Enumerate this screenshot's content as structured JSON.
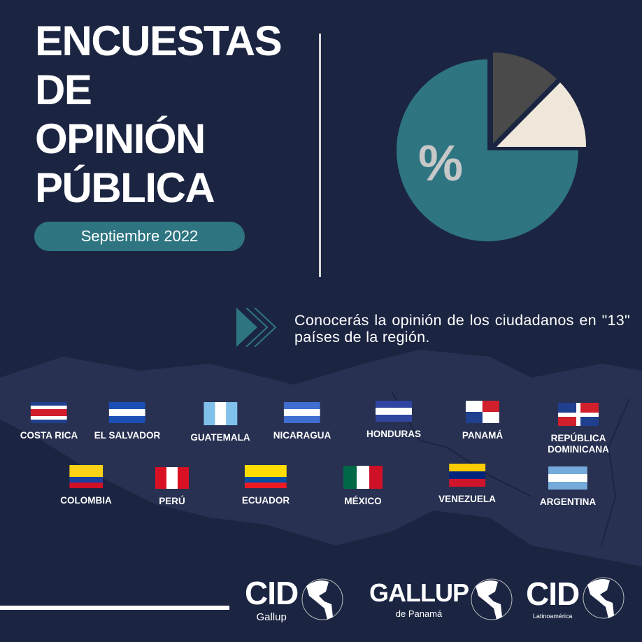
{
  "title_lines": [
    "ENCUESTAS",
    "DE",
    "OPINIÓN",
    "PÚBLICA"
  ],
  "date_label": "Septiembre 2022",
  "pie_symbol": "%",
  "pie_colors": {
    "main": "#2e7581",
    "dark": "#4a4a4a",
    "light": "#efe8da"
  },
  "intro_text": "Conocerás la opinión de los ciudadanos en \"13\" países de la región.",
  "countries": [
    {
      "name": "COSTA RICA",
      "stripes": [
        "#1f3f8f",
        "#ffffff",
        "#d21f2c",
        "#d21f2c",
        "#ffffff",
        "#1f3f8f"
      ]
    },
    {
      "name": "EL SALVADOR",
      "stripes": [
        "#1c4fb5",
        "#ffffff",
        "#1c4fb5"
      ]
    },
    {
      "name": "GUATEMALA",
      "stripes": [
        "#7fc1ea",
        "#ffffff",
        "#7fc1ea"
      ],
      "vertical": true
    },
    {
      "name": "NICARAGUA",
      "stripes": [
        "#3f6ed0",
        "#ffffff",
        "#3f6ed0"
      ]
    },
    {
      "name": "HONDURAS",
      "stripes": [
        "#2f45a0",
        "#ffffff",
        "#2f45a0"
      ]
    },
    {
      "name": "PANAMÁ",
      "stripes": [
        "#ffffff",
        "#d21f2c",
        "#1f3f8f",
        "#ffffff"
      ],
      "quarters": true
    },
    {
      "name": "REPÚBLICA DOMINICANA",
      "stripes": [
        "#1f3f8f",
        "#d21f2c",
        "#d21f2c",
        "#1f3f8f"
      ],
      "quarters": true
    },
    {
      "name": "COLOMBIA",
      "stripes": [
        "#fcd116",
        "#fcd116",
        "#1c3f9e",
        "#ce1126"
      ]
    },
    {
      "name": "PERÚ",
      "stripes": [
        "#d91023",
        "#ffffff",
        "#d91023"
      ],
      "vertical": true
    },
    {
      "name": "ECUADOR",
      "stripes": [
        "#ffdd00",
        "#ffdd00",
        "#034ea2",
        "#ed1c24"
      ]
    },
    {
      "name": "MÉXICO",
      "stripes": [
        "#006847",
        "#ffffff",
        "#ce1126"
      ],
      "vertical": true
    },
    {
      "name": "VENEZUELA",
      "stripes": [
        "#ffcc00",
        "#00247d",
        "#cf142b"
      ]
    },
    {
      "name": "ARGENTINA",
      "stripes": [
        "#75aadb",
        "#ffffff",
        "#75aadb"
      ]
    }
  ],
  "logos": [
    {
      "main": "CID",
      "sub": "Gallup"
    },
    {
      "main": "GALLUP",
      "sub": "de Panamá"
    },
    {
      "main": "CID",
      "sub": "Latinoamérica"
    }
  ]
}
